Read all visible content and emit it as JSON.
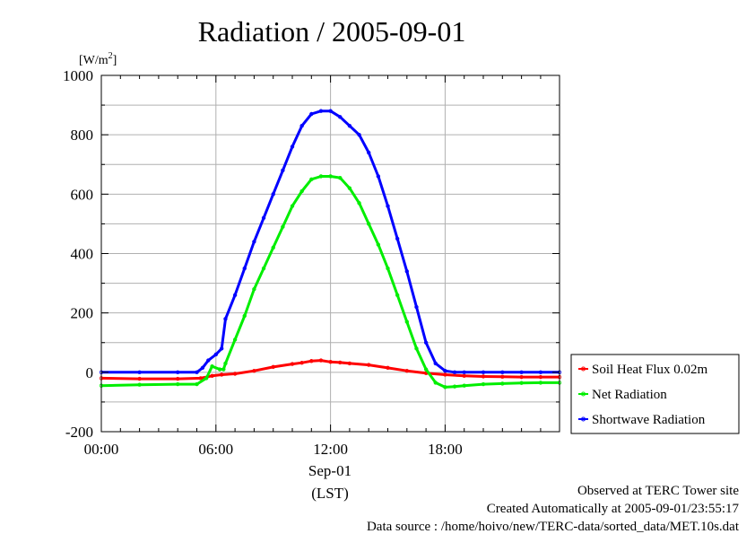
{
  "chart_data": {
    "type": "line",
    "title": "Radiation / 2005-09-01",
    "ylabel": "[W/m2]",
    "ylabel_main": "[W/m",
    "ylabel_sup": "2",
    "ylabel_close": "]",
    "xlabel": "(LST)",
    "date_label": "Sep-01",
    "ylim": [
      -200,
      1000
    ],
    "xlim_hours": [
      0,
      23.99
    ],
    "yticks": [
      -200,
      0,
      200,
      400,
      600,
      800,
      1000
    ],
    "xticks": [
      0,
      6,
      12,
      18
    ],
    "xtick_labels": [
      "00:00",
      "06:00",
      "12:00",
      "18:00"
    ],
    "grid": true,
    "legend_position": "right",
    "series": [
      {
        "name": "Soil Heat Flux 0.02m",
        "color": "#ff0000",
        "x": [
          0,
          2,
          4,
          5.2,
          5.8,
          6.3,
          7,
          8,
          9,
          10,
          10.5,
          11,
          11.5,
          12,
          12.5,
          13,
          14,
          15,
          16,
          17,
          18,
          19,
          20,
          21,
          22,
          23,
          23.99
        ],
        "y": [
          -20,
          -22,
          -22,
          -20,
          -12,
          -8,
          -5,
          5,
          18,
          28,
          32,
          38,
          40,
          35,
          33,
          30,
          25,
          15,
          5,
          -3,
          -8,
          -12,
          -14,
          -15,
          -16,
          -16,
          -16
        ]
      },
      {
        "name": "Net Radiation",
        "color": "#00ee00",
        "x": [
          0,
          2,
          4,
          5,
          5.5,
          5.8,
          6.2,
          6.4,
          6.5,
          7,
          7.5,
          8,
          8.5,
          9,
          9.5,
          10,
          10.5,
          11,
          11.5,
          12,
          12.5,
          13,
          13.5,
          14,
          14.5,
          15,
          15.5,
          16,
          16.5,
          17,
          17.5,
          18,
          18.5,
          19,
          20,
          21,
          22,
          23,
          23.99
        ],
        "y": [
          -45,
          -42,
          -40,
          -40,
          -20,
          20,
          10,
          10,
          30,
          110,
          190,
          280,
          350,
          420,
          490,
          560,
          610,
          650,
          660,
          660,
          655,
          620,
          570,
          500,
          430,
          350,
          260,
          170,
          80,
          10,
          -35,
          -50,
          -48,
          -45,
          -40,
          -38,
          -36,
          -35,
          -35
        ]
      },
      {
        "name": "Shortwave Radiation",
        "color": "#0000ff",
        "x": [
          0,
          2,
          4,
          5,
          5.3,
          5.6,
          6,
          6.3,
          6.5,
          7,
          7.5,
          8,
          8.5,
          9,
          9.5,
          10,
          10.5,
          11,
          11.5,
          12,
          12.5,
          13,
          13.5,
          14,
          14.5,
          15,
          15.5,
          16,
          16.5,
          17,
          17.5,
          18,
          18.5,
          19,
          20,
          21,
          22,
          23,
          23.99
        ],
        "y": [
          0,
          0,
          0,
          0,
          15,
          40,
          60,
          80,
          180,
          260,
          350,
          440,
          520,
          600,
          680,
          760,
          830,
          870,
          880,
          880,
          860,
          830,
          800,
          740,
          660,
          560,
          450,
          340,
          220,
          100,
          30,
          5,
          0,
          0,
          0,
          0,
          0,
          0,
          0
        ]
      }
    ]
  },
  "footer": {
    "line1": "Observed at TERC Tower site",
    "line2": "Created Automatically at 2005-09-01/23:55:17",
    "line3": "Data source : /home/hoivo/new/TERC-data/sorted_data/MET.10s.dat"
  }
}
